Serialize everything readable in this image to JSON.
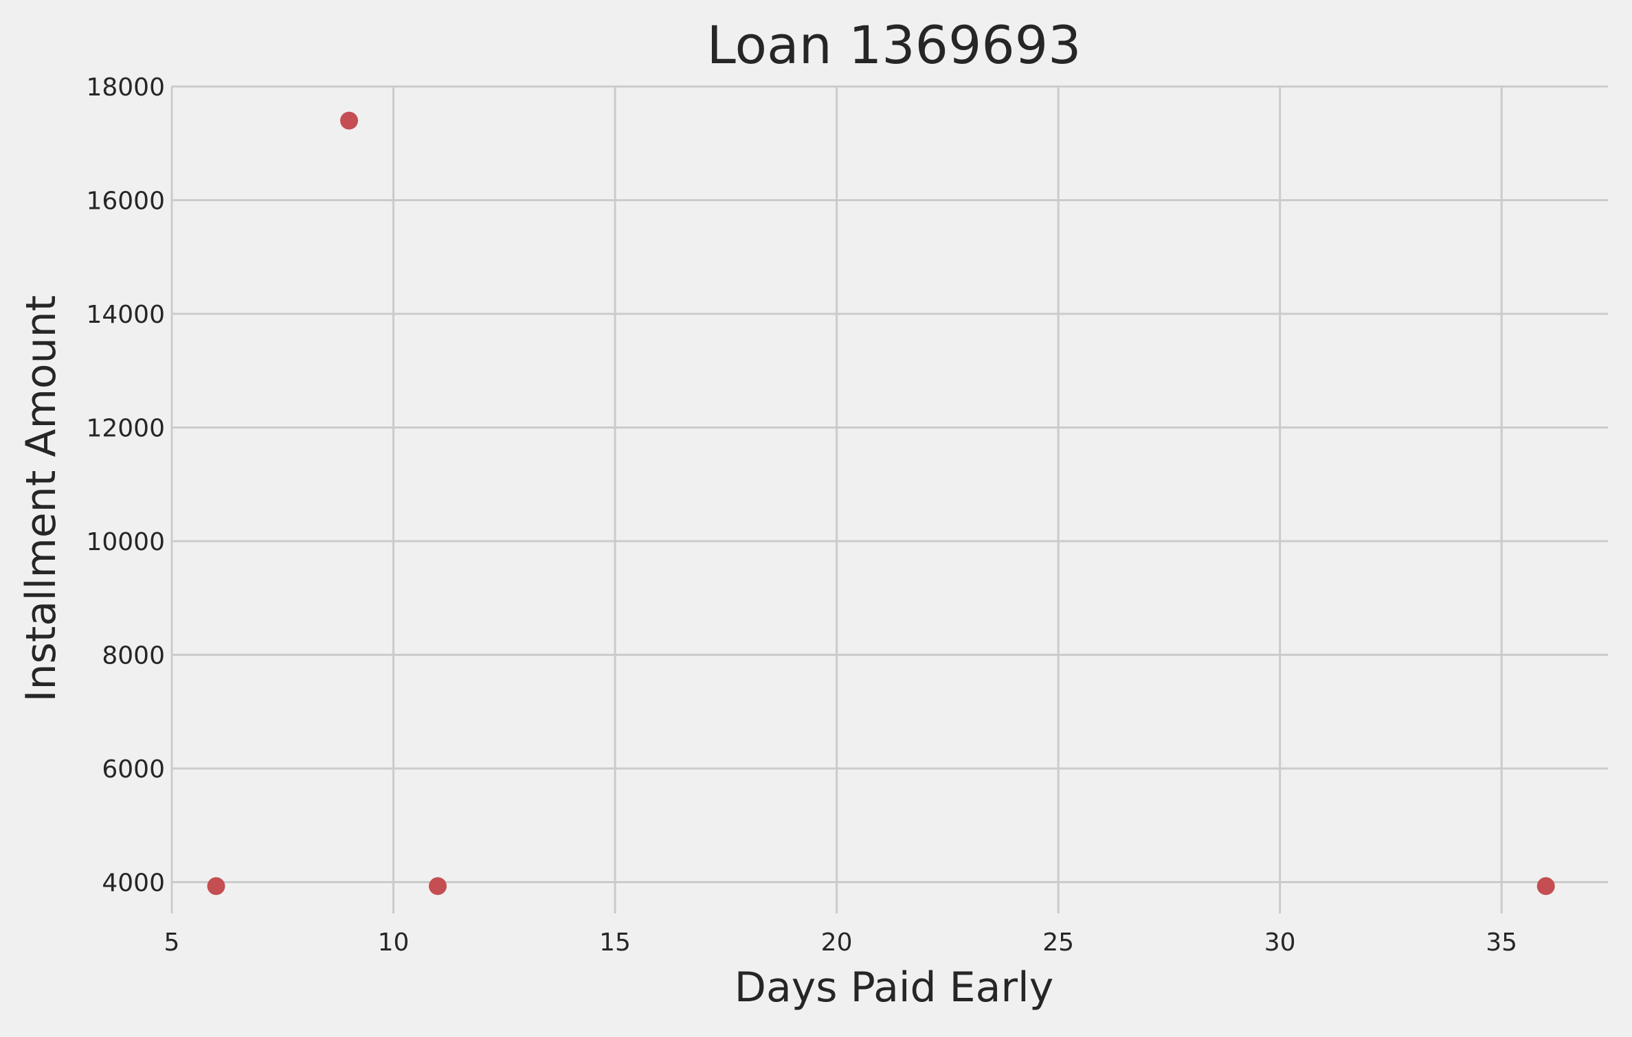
{
  "chart_data": {
    "type": "scatter",
    "title": "Loan 1369693",
    "xlabel": "Days Paid Early",
    "ylabel": "Installment Amount",
    "xlim": [
      5,
      37.4
    ],
    "ylim": [
      3450,
      18000
    ],
    "xticks": [
      5,
      10,
      15,
      20,
      25,
      30,
      35
    ],
    "yticks": [
      4000,
      6000,
      8000,
      10000,
      12000,
      14000,
      16000,
      18000
    ],
    "grid": true,
    "series": [
      {
        "color": "#c44e52",
        "points": [
          {
            "x": 6,
            "y": 3930
          },
          {
            "x": 9,
            "y": 17400
          },
          {
            "x": 11,
            "y": 3930
          },
          {
            "x": 36,
            "y": 3930
          }
        ]
      }
    ]
  }
}
